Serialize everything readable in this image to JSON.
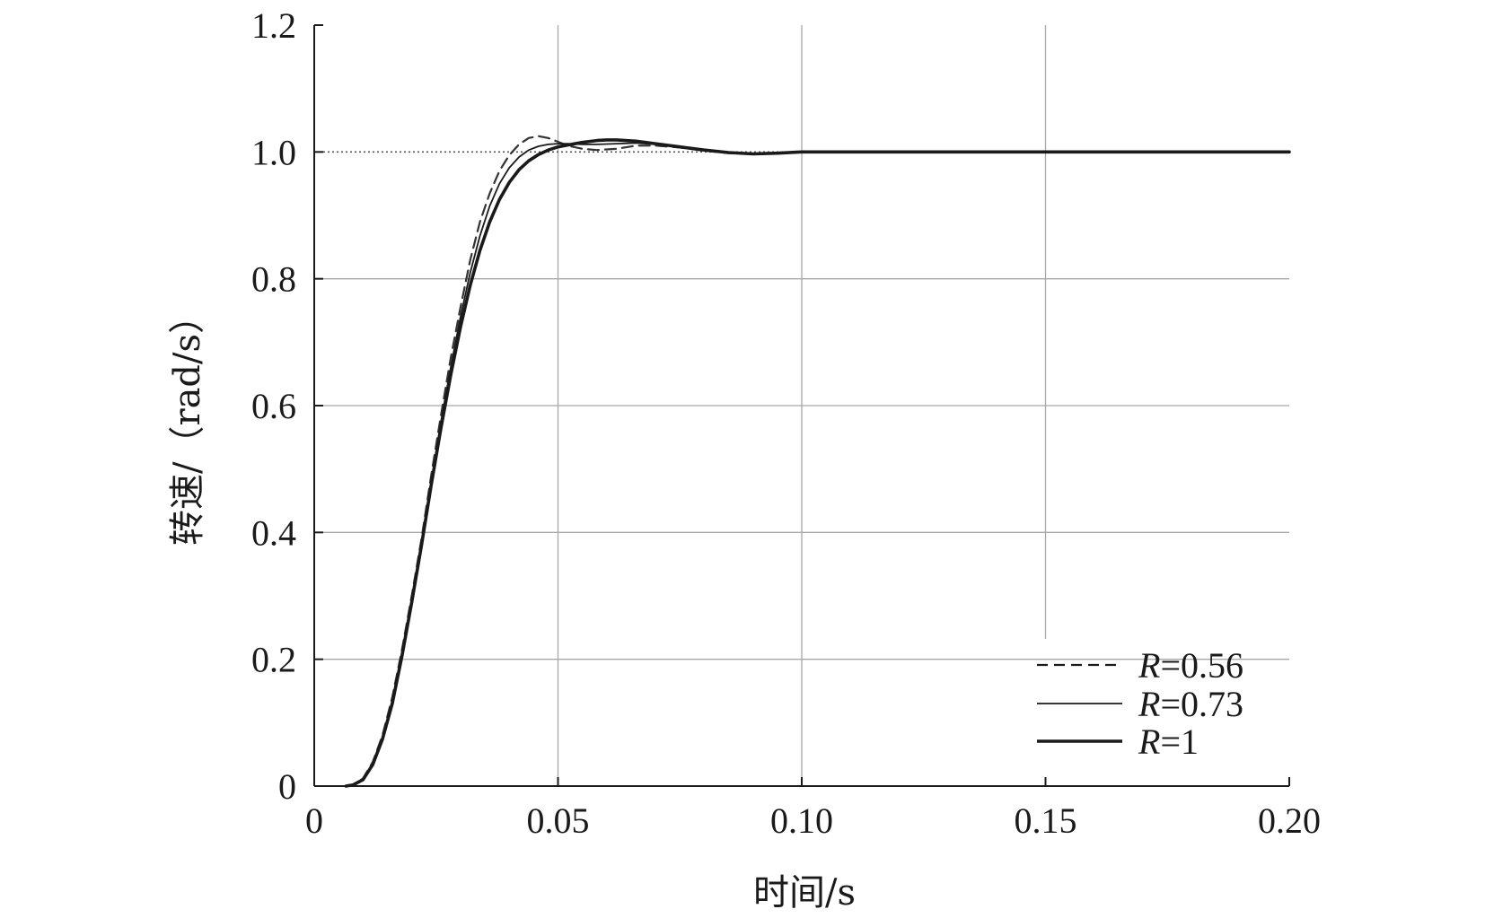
{
  "chart_data": {
    "type": "line",
    "xlabel": "时间/s",
    "ylabel": "转速/（rad/s）",
    "xlim": [
      0,
      0.2
    ],
    "ylim": [
      0,
      1.2
    ],
    "x_ticks": [
      0,
      0.05,
      0.1,
      0.15,
      0.2
    ],
    "x_tick_labels": [
      "0",
      "0.05",
      "0.10",
      "0.15",
      "0.20"
    ],
    "y_ticks": [
      0,
      0.2,
      0.4,
      0.6,
      0.8,
      1.0,
      1.2
    ],
    "y_tick_labels": [
      "0",
      "0.2",
      "0.4",
      "0.6",
      "0.8",
      "1.0",
      "1.2"
    ],
    "grid": true,
    "legend_position": "bottom-right",
    "reference_line": {
      "y": 1.0,
      "style": "dotted"
    },
    "series": [
      {
        "name": "R=0.56",
        "style": "dashed",
        "color": "#333333",
        "x": [
          0.0065,
          0.008,
          0.01,
          0.012,
          0.014,
          0.016,
          0.018,
          0.02,
          0.022,
          0.024,
          0.026,
          0.028,
          0.03,
          0.032,
          0.034,
          0.036,
          0.038,
          0.04,
          0.042,
          0.044,
          0.046,
          0.048,
          0.05,
          0.052,
          0.055,
          0.058,
          0.062,
          0.066,
          0.07,
          0.075,
          0.08,
          0.085,
          0.09,
          0.095,
          0.1,
          0.11,
          0.12,
          0.14,
          0.16,
          0.18,
          0.2
        ],
        "y": [
          0.0,
          0.002,
          0.012,
          0.038,
          0.08,
          0.14,
          0.215,
          0.3,
          0.39,
          0.49,
          0.585,
          0.675,
          0.755,
          0.83,
          0.89,
          0.935,
          0.97,
          0.995,
          1.012,
          1.022,
          1.025,
          1.022,
          1.016,
          1.01,
          1.005,
          1.003,
          1.005,
          1.01,
          1.01,
          1.007,
          1.002,
          0.998,
          0.997,
          0.998,
          1.0,
          1.0,
          1.0,
          1.0,
          1.0,
          1.0,
          1.0
        ]
      },
      {
        "name": "R=0.73",
        "style": "solid-thin",
        "color": "#1a1a1a",
        "x": [
          0.0065,
          0.008,
          0.01,
          0.012,
          0.014,
          0.016,
          0.018,
          0.02,
          0.022,
          0.024,
          0.026,
          0.028,
          0.03,
          0.032,
          0.034,
          0.036,
          0.038,
          0.04,
          0.042,
          0.044,
          0.046,
          0.048,
          0.05,
          0.052,
          0.055,
          0.058,
          0.062,
          0.066,
          0.07,
          0.075,
          0.08,
          0.085,
          0.09,
          0.095,
          0.1,
          0.11,
          0.12,
          0.14,
          0.16,
          0.18,
          0.2
        ],
        "y": [
          0.0,
          0.002,
          0.011,
          0.036,
          0.077,
          0.135,
          0.21,
          0.295,
          0.385,
          0.48,
          0.575,
          0.66,
          0.74,
          0.81,
          0.868,
          0.915,
          0.95,
          0.975,
          0.992,
          1.003,
          1.009,
          1.012,
          1.013,
          1.013,
          1.012,
          1.012,
          1.013,
          1.014,
          1.012,
          1.008,
          1.003,
          0.999,
          0.997,
          0.998,
          1.0,
          1.0,
          1.0,
          1.0,
          1.0,
          1.0,
          1.0
        ]
      },
      {
        "name": "R=1",
        "style": "solid-thick",
        "color": "#1a1a1a",
        "x": [
          0.0065,
          0.008,
          0.01,
          0.012,
          0.014,
          0.016,
          0.018,
          0.02,
          0.022,
          0.024,
          0.026,
          0.028,
          0.03,
          0.032,
          0.034,
          0.036,
          0.038,
          0.04,
          0.042,
          0.044,
          0.046,
          0.048,
          0.05,
          0.052,
          0.055,
          0.058,
          0.06,
          0.062,
          0.066,
          0.07,
          0.075,
          0.08,
          0.085,
          0.09,
          0.095,
          0.1,
          0.11,
          0.12,
          0.14,
          0.16,
          0.18,
          0.2
        ],
        "y": [
          0.0,
          0.002,
          0.01,
          0.034,
          0.074,
          0.13,
          0.205,
          0.29,
          0.38,
          0.475,
          0.565,
          0.648,
          0.724,
          0.79,
          0.845,
          0.89,
          0.925,
          0.952,
          0.972,
          0.986,
          0.996,
          1.003,
          1.008,
          1.011,
          1.015,
          1.018,
          1.019,
          1.019,
          1.017,
          1.013,
          1.008,
          1.003,
          0.999,
          0.997,
          0.998,
          1.0,
          1.0,
          1.0,
          1.0,
          1.0,
          1.0,
          1.0
        ]
      }
    ],
    "legend": [
      {
        "italic": "R",
        "rest": "=0.56",
        "style": "dashed"
      },
      {
        "italic": "R",
        "rest": "=0.73",
        "style": "solid-thin"
      },
      {
        "italic": "R",
        "rest": "=1",
        "style": "solid-thick"
      }
    ]
  },
  "colors": {
    "axis": "#1a1a1a",
    "grid": "#a8a8a8",
    "reference": "#555555"
  }
}
